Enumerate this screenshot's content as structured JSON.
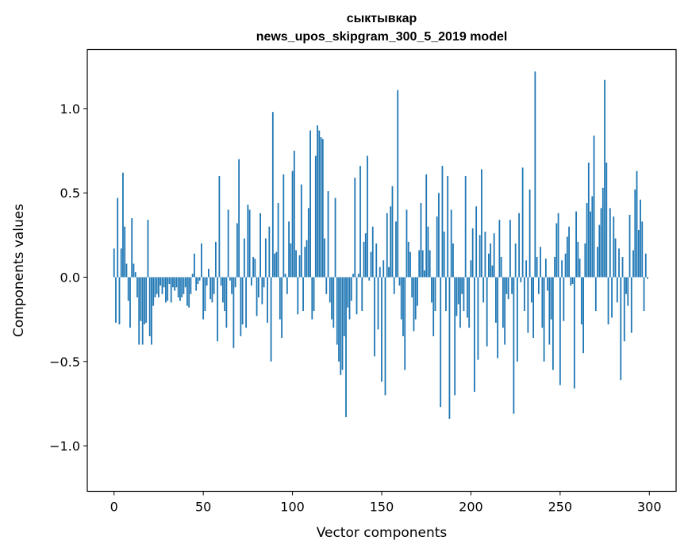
{
  "chart_data": {
    "type": "bar",
    "title": "сыктывкар",
    "subtitle": "news_upos_skipgram_300_5_2019 model",
    "xlabel": "Vector components",
    "ylabel": "Components values",
    "xlim": [
      -15,
      315
    ],
    "ylim": [
      -1.27,
      1.35
    ],
    "xticks": [
      0,
      50,
      100,
      150,
      200,
      250,
      300
    ],
    "xtick_labels": [
      "0",
      "50",
      "100",
      "150",
      "200",
      "250",
      "300"
    ],
    "yticks": [
      -1.0,
      -0.5,
      0.0,
      0.5,
      1.0
    ],
    "ytick_labels": [
      "−1.0",
      "−0.5",
      "0.0",
      "0.5",
      "1.0"
    ],
    "bar_color": "#1f77b4",
    "grid": false,
    "legend": "none",
    "values": [
      0.17,
      -0.27,
      0.47,
      -0.28,
      0.17,
      0.62,
      0.3,
      0.08,
      -0.14,
      -0.3,
      0.35,
      0.08,
      0.03,
      -0.12,
      -0.4,
      -0.26,
      -0.4,
      -0.28,
      -0.27,
      0.34,
      -0.35,
      -0.4,
      -0.17,
      -0.12,
      -0.1,
      -0.12,
      -0.05,
      -0.1,
      -0.06,
      -0.15,
      -0.14,
      -0.04,
      -0.15,
      -0.06,
      -0.08,
      -0.06,
      -0.12,
      -0.14,
      -0.12,
      -0.1,
      -0.06,
      -0.17,
      -0.18,
      -0.1,
      0.02,
      0.14,
      -0.08,
      -0.04,
      -0.02,
      0.2,
      -0.25,
      -0.2,
      -0.05,
      0.05,
      -0.13,
      -0.15,
      -0.1,
      0.21,
      -0.38,
      0.6,
      -0.05,
      -0.15,
      -0.2,
      -0.3,
      0.4,
      -0.02,
      -0.1,
      -0.42,
      -0.06,
      0.32,
      0.7,
      -0.35,
      -0.28,
      0.23,
      -0.3,
      0.43,
      0.4,
      -0.05,
      0.12,
      0.11,
      -0.23,
      -0.12,
      0.38,
      -0.16,
      -0.06,
      0.23,
      -0.27,
      0.3,
      -0.5,
      0.98,
      0.14,
      0.15,
      0.44,
      -0.25,
      -0.36,
      0.61,
      0.02,
      -0.1,
      0.33,
      0.2,
      0.63,
      0.75,
      0.16,
      -0.22,
      0.13,
      0.55,
      -0.2,
      0.18,
      0.22,
      0.41,
      0.87,
      -0.25,
      -0.2,
      0.72,
      0.9,
      0.87,
      0.83,
      0.82,
      0.23,
      -0.1,
      0.51,
      -0.15,
      -0.25,
      -0.3,
      0.47,
      -0.4,
      -0.5,
      -0.58,
      -0.55,
      -0.35,
      -0.83,
      -0.18,
      -0.25,
      -0.14,
      0.02,
      0.59,
      -0.22,
      0.02,
      0.66,
      -0.2,
      0.21,
      0.26,
      0.72,
      -0.02,
      0.15,
      0.3,
      -0.47,
      0.2,
      -0.31,
      0.06,
      -0.62,
      0.1,
      -0.7,
      0.38,
      0.06,
      0.42,
      0.54,
      -0.1,
      0.33,
      1.11,
      -0.05,
      -0.25,
      -0.35,
      -0.55,
      0.4,
      0.21,
      0.15,
      -0.12,
      -0.32,
      -0.25,
      -0.17,
      0.16,
      0.44,
      0.16,
      0.04,
      0.61,
      0.3,
      0.16,
      -0.15,
      -0.35,
      -0.2,
      0.36,
      0.5,
      -0.77,
      0.66,
      0.27,
      -0.2,
      0.6,
      -0.84,
      0.4,
      0.2,
      -0.7,
      -0.23,
      -0.16,
      -0.3,
      -0.1,
      -0.2,
      0.6,
      -0.24,
      -0.3,
      0.1,
      0.29,
      -0.68,
      0.42,
      -0.49,
      0.25,
      0.64,
      -0.15,
      0.27,
      -0.41,
      0.14,
      0.2,
      0.07,
      0.26,
      -0.27,
      -0.48,
      0.34,
      0.12,
      -0.3,
      -0.4,
      -0.1,
      -0.13,
      0.34,
      -0.1,
      -0.81,
      0.2,
      -0.5,
      0.38,
      -0.03,
      0.65,
      -0.2,
      0.1,
      -0.33,
      0.52,
      -0.15,
      -0.36,
      1.22,
      0.12,
      -0.1,
      0.18,
      -0.3,
      -0.5,
      0.11,
      -0.08,
      -0.4,
      -0.25,
      -0.55,
      0.12,
      0.32,
      0.38,
      -0.64,
      0.1,
      -0.26,
      0.14,
      0.24,
      0.3,
      -0.05,
      -0.04,
      -0.66,
      0.39,
      0.21,
      0.11,
      -0.28,
      -0.45,
      0.2,
      0.44,
      0.68,
      0.39,
      0.48,
      0.84,
      -0.2,
      0.18,
      0.31,
      0.41,
      0.53,
      1.17,
      0.68,
      -0.28,
      0.41,
      -0.24,
      0.36,
      0.23,
      -0.15,
      0.17,
      -0.61,
      0.12,
      -0.38,
      -0.1,
      -0.17,
      0.37,
      -0.33,
      0.16,
      0.52,
      0.63,
      0.28,
      0.46,
      0.33,
      -0.2,
      0.14,
      -0.01
    ]
  }
}
